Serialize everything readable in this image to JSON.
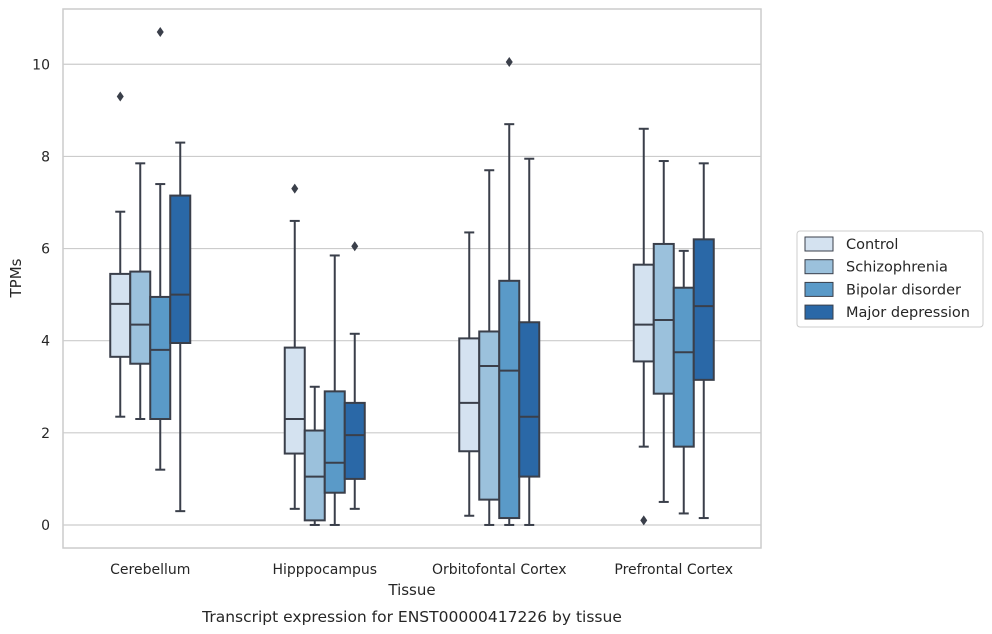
{
  "caption": "Transcript expression for ENST00000417226 by tissue",
  "chart_data": {
    "type": "box",
    "xlabel": "Tissue",
    "ylabel": "TPMs",
    "ylim": [
      -0.5,
      11.2
    ],
    "yticks": [
      0,
      2,
      4,
      6,
      8,
      10
    ],
    "grid": "horizontal",
    "legend_position": "right",
    "categories": [
      "Cerebellum",
      "Hipppocampus",
      "Orbitofontal Cortex",
      "Prefrontal Cortex"
    ],
    "series": [
      {
        "name": "Control",
        "color": "#d4e2f0",
        "boxes": [
          {
            "whislo": 2.35,
            "q1": 3.65,
            "med": 4.8,
            "q3": 5.45,
            "whishi": 6.8,
            "fliers": [
              9.3
            ]
          },
          {
            "whislo": 0.35,
            "q1": 1.55,
            "med": 2.3,
            "q3": 3.85,
            "whishi": 6.6,
            "fliers": [
              7.3
            ]
          },
          {
            "whislo": 0.2,
            "q1": 1.6,
            "med": 2.65,
            "q3": 4.05,
            "whishi": 6.35,
            "fliers": []
          },
          {
            "whislo": 1.7,
            "q1": 3.55,
            "med": 4.35,
            "q3": 5.65,
            "whishi": 8.6,
            "fliers": [
              0.1
            ]
          }
        ]
      },
      {
        "name": "Schizophrenia",
        "color": "#9bc1dc",
        "boxes": [
          {
            "whislo": 2.3,
            "q1": 3.5,
            "med": 4.35,
            "q3": 5.5,
            "whishi": 7.85,
            "fliers": []
          },
          {
            "whislo": 0.0,
            "q1": 0.1,
            "med": 1.05,
            "q3": 2.05,
            "whishi": 3.0,
            "fliers": []
          },
          {
            "whislo": 0.0,
            "q1": 0.55,
            "med": 3.45,
            "q3": 4.2,
            "whishi": 7.7,
            "fliers": []
          },
          {
            "whislo": 0.5,
            "q1": 2.85,
            "med": 4.45,
            "q3": 6.1,
            "whishi": 7.9,
            "fliers": []
          }
        ]
      },
      {
        "name": "Bipolar disorder",
        "color": "#5a9ac8",
        "boxes": [
          {
            "whislo": 1.2,
            "q1": 2.3,
            "med": 3.8,
            "q3": 4.95,
            "whishi": 7.4,
            "fliers": [
              10.7
            ]
          },
          {
            "whislo": 0.0,
            "q1": 0.7,
            "med": 1.35,
            "q3": 2.9,
            "whishi": 5.85,
            "fliers": []
          },
          {
            "whislo": 0.0,
            "q1": 0.15,
            "med": 3.35,
            "q3": 5.3,
            "whishi": 8.7,
            "fliers": [
              10.05
            ]
          },
          {
            "whislo": 0.25,
            "q1": 1.7,
            "med": 3.75,
            "q3": 5.15,
            "whishi": 5.95,
            "fliers": []
          }
        ]
      },
      {
        "name": "Major depression",
        "color": "#2a68a7",
        "boxes": [
          {
            "whislo": 0.3,
            "q1": 3.95,
            "med": 5.0,
            "q3": 7.15,
            "whishi": 8.3,
            "fliers": []
          },
          {
            "whislo": 0.35,
            "q1": 1.0,
            "med": 1.95,
            "q3": 2.65,
            "whishi": 4.15,
            "fliers": [
              6.05
            ]
          },
          {
            "whislo": 0.0,
            "q1": 1.05,
            "med": 2.35,
            "q3": 4.4,
            "whishi": 7.95,
            "fliers": []
          },
          {
            "whislo": 0.15,
            "q1": 3.15,
            "med": 4.75,
            "q3": 6.2,
            "whishi": 7.85,
            "fliers": []
          }
        ]
      }
    ]
  }
}
